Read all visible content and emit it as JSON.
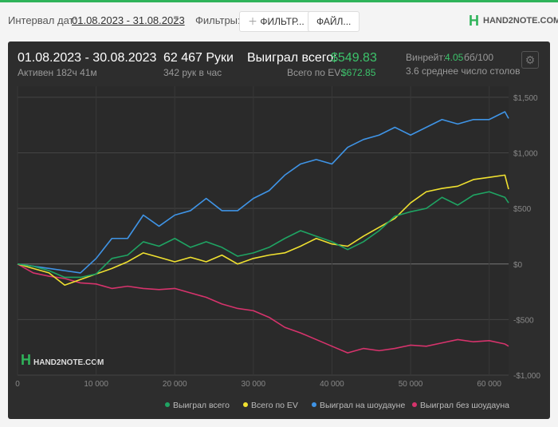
{
  "toolbar": {
    "date_label": "Интервал дат:",
    "date_range": "01.08.2023 - 31.08.2023",
    "filters_label": "Фильтры:",
    "filter_button": "ФИЛЬТР...",
    "file_button": "ФАЙЛ...",
    "logo": "HAND2NOTE.COM"
  },
  "summary": {
    "period": "01.08.2023 - 30.08.2023",
    "active": "Активен 182ч 41м",
    "hands": "62 467 Руки",
    "hands_per_hour": "342 рук в час",
    "won_label": "Выиграл всего:",
    "won_value": "$549.83",
    "ev_label": "Всего по EV:",
    "ev_value": "$672.85",
    "winrate_label": "Винрейт:",
    "winrate_value": "4.05",
    "winrate_unit": "бб/100",
    "tables": "3.6 среднее число столов"
  },
  "chart_data": {
    "type": "line",
    "watermark": "HAND2NOTE.COM",
    "x": [
      0,
      2000,
      4000,
      6000,
      8000,
      10000,
      12000,
      14000,
      16000,
      18000,
      20000,
      22000,
      24000,
      26000,
      28000,
      30000,
      32000,
      34000,
      36000,
      38000,
      40000,
      42000,
      44000,
      46000,
      48000,
      50000,
      52000,
      54000,
      56000,
      58000,
      60000,
      62000,
      62467
    ],
    "series": [
      {
        "name": "Выиграл всего",
        "color": "#1fa463",
        "values": [
          0,
          -20,
          -60,
          -120,
          -120,
          -90,
          50,
          80,
          200,
          160,
          230,
          150,
          200,
          150,
          70,
          100,
          150,
          230,
          300,
          250,
          200,
          130,
          200,
          300,
          430,
          470,
          500,
          600,
          530,
          620,
          650,
          600,
          549.83
        ]
      },
      {
        "name": "Всего по EV",
        "color": "#f0e130",
        "values": [
          0,
          -40,
          -80,
          -190,
          -140,
          -90,
          -40,
          20,
          100,
          60,
          20,
          60,
          20,
          80,
          0,
          50,
          80,
          100,
          160,
          230,
          180,
          160,
          250,
          330,
          410,
          550,
          650,
          680,
          700,
          760,
          780,
          800,
          672.85
        ]
      },
      {
        "name": "Выиграл на шоудауне",
        "color": "#3f94e6",
        "values": [
          0,
          -20,
          -40,
          -60,
          -80,
          50,
          230,
          230,
          440,
          340,
          440,
          480,
          590,
          480,
          480,
          590,
          660,
          800,
          900,
          940,
          900,
          1050,
          1120,
          1160,
          1230,
          1160,
          1230,
          1300,
          1260,
          1300,
          1300,
          1370,
          1310
        ]
      },
      {
        "name": "Выиграл без шоудауна",
        "color": "#d6336c",
        "values": [
          0,
          -80,
          -110,
          -130,
          -170,
          -180,
          -220,
          -200,
          -220,
          -230,
          -220,
          -260,
          -300,
          -360,
          -400,
          -420,
          -480,
          -570,
          -620,
          -680,
          -740,
          -800,
          -760,
          -780,
          -760,
          -730,
          -740,
          -710,
          -680,
          -700,
          -690,
          -720,
          -740
        ]
      }
    ],
    "xlim": [
      0,
      62467
    ],
    "ylim": [
      -1000,
      1600
    ],
    "xticks": [
      0,
      {
        "value": 10000,
        "label": "10 000"
      },
      {
        "value": 20000,
        "label": "20 000"
      },
      {
        "value": 30000,
        "label": "30 000"
      },
      {
        "value": 40000,
        "label": "40 000"
      },
      {
        "value": 50000,
        "label": "50 000"
      },
      {
        "value": 60000,
        "label": "60 000"
      }
    ],
    "yticks": [
      {
        "value": -1000,
        "label": "-$1,000"
      },
      {
        "value": -500,
        "label": "-$500"
      },
      {
        "value": 0,
        "label": "$0"
      },
      {
        "value": 500,
        "label": "$500"
      },
      {
        "value": 1000,
        "label": "$1,000"
      },
      {
        "value": 1500,
        "label": "$1,500"
      }
    ],
    "grid": true
  }
}
